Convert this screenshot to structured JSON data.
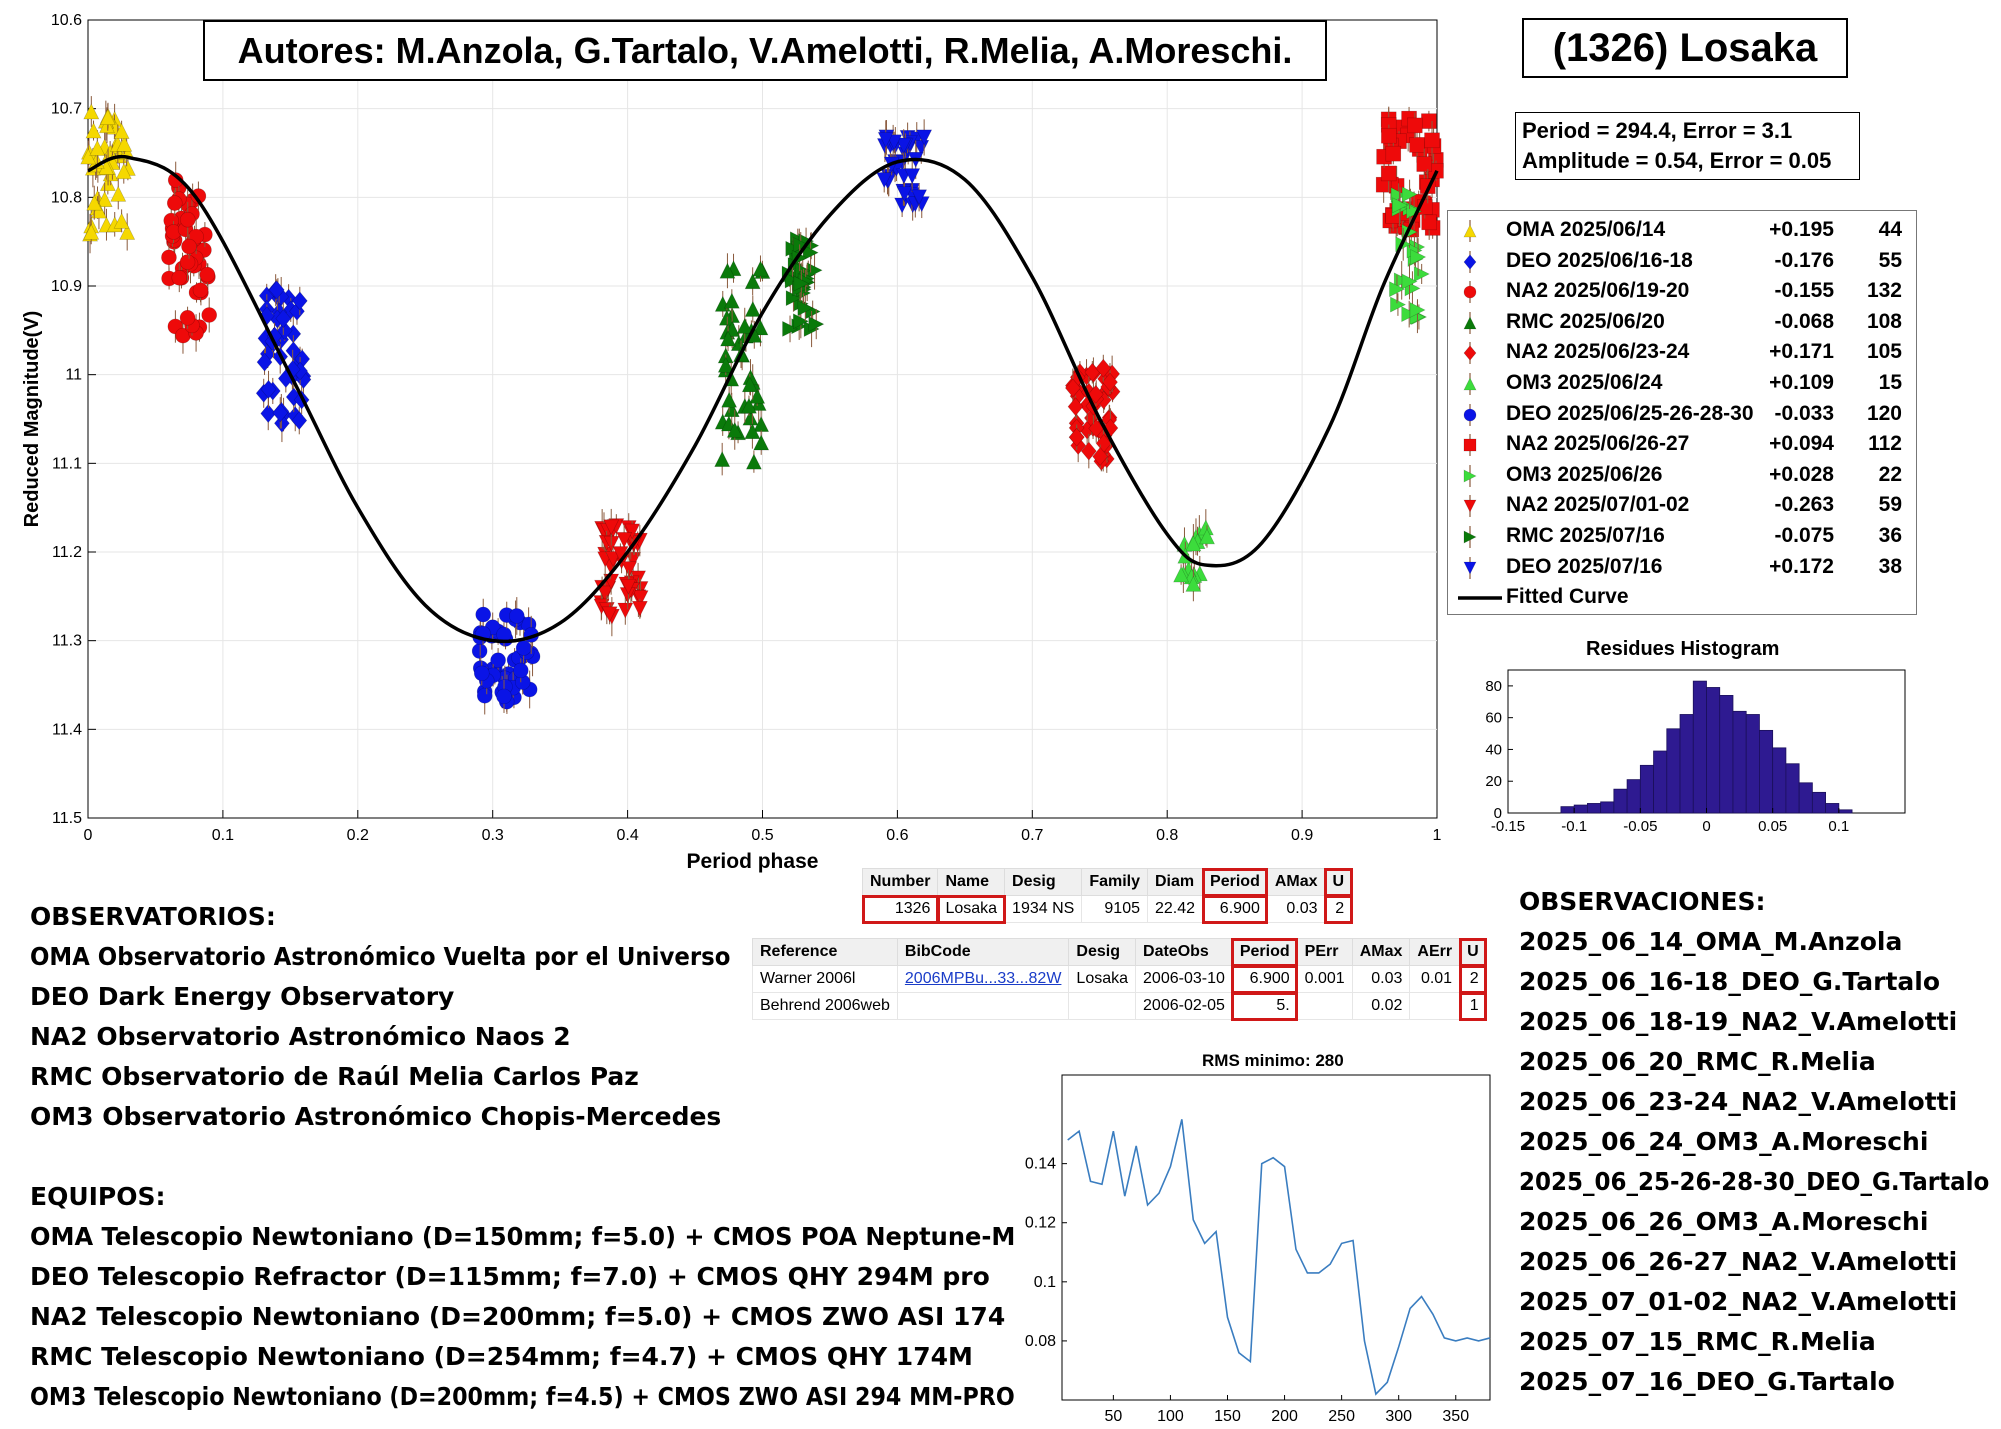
{
  "header": {
    "authors": "Autores: M.Anzola, G.Tartalo, V.Amelotti, R.Melia, A.Moreschi.",
    "asteroid": "(1326) Losaka"
  },
  "params": {
    "line1": "Period =  294.4, Error = 3.1",
    "line2": "Amplitude = 0.54, Error = 0.05"
  },
  "legend": [
    {
      "name": "OMA 2025/06/14",
      "offset": "+0.195",
      "n": "44",
      "color": "#f5d800",
      "marker": "triangle-up"
    },
    {
      "name": "DEO 2025/06/16-18",
      "offset": "-0.176",
      "n": "55",
      "color": "#0a14e6",
      "marker": "diamond"
    },
    {
      "name": "NA2 2025/06/19-20",
      "offset": "-0.155",
      "n": "132",
      "color": "#ee0a0a",
      "marker": "circle"
    },
    {
      "name": "RMC 2025/06/20",
      "offset": "-0.068",
      "n": "108",
      "color": "#0a7a0a",
      "marker": "triangle-up"
    },
    {
      "name": "NA2 2025/06/23-24",
      "offset": "+0.171",
      "n": "105",
      "color": "#ee0a0a",
      "marker": "diamond"
    },
    {
      "name": "OM3 2025/06/24",
      "offset": "+0.109",
      "n": "15",
      "color": "#3cdc3c",
      "marker": "triangle-up"
    },
    {
      "name": "DEO 2025/06/25-26-28-30",
      "offset": "-0.033",
      "n": "120",
      "color": "#0a14e6",
      "marker": "circle"
    },
    {
      "name": "NA2 2025/06/26-27",
      "offset": "+0.094",
      "n": "112",
      "color": "#ee0a0a",
      "marker": "square"
    },
    {
      "name": "OM3 2025/06/26",
      "offset": "+0.028",
      "n": "22",
      "color": "#3cdc3c",
      "marker": "triangle-right"
    },
    {
      "name": "NA2 2025/07/01-02",
      "offset": "-0.263",
      "n": "59",
      "color": "#ee0a0a",
      "marker": "triangle-down"
    },
    {
      "name": "RMC 2025/07/16",
      "offset": "-0.075",
      "n": "36",
      "color": "#0a7a0a",
      "marker": "triangle-right"
    },
    {
      "name": "DEO 2025/07/16",
      "offset": "+0.172",
      "n": "38",
      "color": "#0a14e6",
      "marker": "triangle-down"
    },
    {
      "name": "Fitted Curve",
      "offset": "",
      "n": "",
      "color": "#000000",
      "marker": "line"
    }
  ],
  "observatorios": {
    "title": "OBSERVATORIOS:",
    "items": [
      "OMA Observatorio Astronómico Vuelta por el Universo",
      "DEO Dark Energy Observatory",
      "NA2 Observatorio Astronómico Naos 2",
      "RMC Observatorio de Raúl Melia Carlos Paz",
      "OM3 Observatorio Astronómico Chopis-Mercedes"
    ]
  },
  "equipos": {
    "title": "EQUIPOS:",
    "items": [
      "OMA Telescopio Newtoniano (D=150mm; f=5.0) + CMOS POA Neptune-M",
      "DEO Telescopio Refractor (D=115mm; f=7.0) + CMOS QHY 294M pro",
      "NA2 Telescopio Newtoniano (D=200mm; f=5.0) + CMOS ZWO ASI 174",
      "RMC Telescopio Newtoniano (D=254mm; f=4.7) + CMOS QHY 174M",
      "OM3 Telescopio Newtoniano (D=200mm; f=4.5) + CMOS ZWO ASI 294 MM-PRO"
    ]
  },
  "observaciones": {
    "title": "OBSERVACIONES:",
    "items": [
      "2025_06_14_OMA_M.Anzola",
      "2025_06_16-18_DEO_G.Tartalo",
      "2025_06_18-19_NA2_V.Amelotti",
      "2025_06_20_RMC_R.Melia",
      "2025_06_23-24_NA2_V.Amelotti",
      "2025_06_24_OM3_A.Moreschi",
      "2025_06_25-26-28-30_DEO_G.Tartalo",
      "2025_06_26_OM3_A.Moreschi",
      "2025_06_26-27_NA2_V.Amelotti",
      "2025_07_01-02_NA2_V.Amelotti",
      "2025_07_15_RMC_R.Melia",
      "2025_07_16_DEO_G.Tartalo"
    ]
  },
  "lcdb_table1": {
    "headers": [
      "Number",
      "Name",
      "Desig",
      "Family",
      "Diam",
      "Period",
      "AMax",
      "U"
    ],
    "row": [
      "1326",
      "Losaka",
      "1934 NS",
      "9105",
      "22.42",
      "6.900",
      "0.03",
      "2"
    ]
  },
  "lcdb_table2": {
    "headers": [
      "Reference",
      "BibCode",
      "Desig",
      "DateObs",
      "Period",
      "PErr",
      "AMax",
      "AErr",
      "U"
    ],
    "rows": [
      [
        "Warner 2006l",
        "2006MPBu...33...82W",
        "Losaka",
        "2006-03-10",
        "6.900",
        "0.001",
        "0.03",
        "0.01",
        "2"
      ],
      [
        "Behrend 2006web",
        "",
        "",
        "2006-02-05",
        "5.",
        "",
        "0.02",
        "",
        "1"
      ]
    ]
  },
  "chart_data": [
    {
      "type": "scatter",
      "title": "",
      "xlabel": "Period phase",
      "ylabel": "Reduced Magnitude(V)",
      "xlim": [
        0,
        1
      ],
      "ylim": [
        10.6,
        11.5
      ],
      "y_reversed": true,
      "grid": true,
      "xticks": [
        "0",
        "0.1",
        "0.2",
        "0.3",
        "0.4",
        "0.5",
        "0.6",
        "0.7",
        "0.8",
        "0.9",
        "1"
      ],
      "yticks": [
        "10.6",
        "10.7",
        "10.8",
        "10.9",
        "11",
        "11.1",
        "11.2",
        "11.3",
        "11.4",
        "11.5"
      ],
      "fitted_curve": {
        "name": "Fitted Curve",
        "period": 294.4,
        "amplitude": 0.54,
        "points": [
          [
            0,
            10.77
          ],
          [
            0.03,
            10.755
          ],
          [
            0.08,
            10.8
          ],
          [
            0.15,
            11.0
          ],
          [
            0.2,
            11.15
          ],
          [
            0.25,
            11.26
          ],
          [
            0.3,
            11.3
          ],
          [
            0.35,
            11.28
          ],
          [
            0.4,
            11.2
          ],
          [
            0.45,
            11.08
          ],
          [
            0.5,
            10.93
          ],
          [
            0.55,
            10.82
          ],
          [
            0.6,
            10.76
          ],
          [
            0.65,
            10.78
          ],
          [
            0.7,
            10.89
          ],
          [
            0.75,
            11.05
          ],
          [
            0.8,
            11.18
          ],
          [
            0.83,
            11.215
          ],
          [
            0.87,
            11.19
          ],
          [
            0.92,
            11.06
          ],
          [
            0.96,
            10.9
          ],
          [
            1.0,
            10.77
          ]
        ]
      },
      "series": [
        {
          "name": "OMA 2025/06/14",
          "phase_range": [
            0.0,
            0.03
          ],
          "mag_range": [
            10.7,
            10.85
          ]
        },
        {
          "name": "DEO 2025/06/16-18",
          "phase_range": [
            0.13,
            0.16
          ],
          "mag_range": [
            10.9,
            11.06
          ]
        },
        {
          "name": "NA2 2025/06/19-20",
          "phase_range": [
            0.06,
            0.09
          ],
          "mag_range": [
            10.78,
            10.96
          ]
        },
        {
          "name": "RMC 2025/06/20",
          "phase_range": [
            0.47,
            0.5
          ],
          "mag_range": [
            10.88,
            11.1
          ]
        },
        {
          "name": "NA2 2025/06/23-24",
          "phase_range": [
            0.73,
            0.76
          ],
          "mag_range": [
            10.99,
            11.1
          ]
        },
        {
          "name": "OM3 2025/06/24",
          "phase_range": [
            0.81,
            0.83
          ],
          "mag_range": [
            11.17,
            11.24
          ]
        },
        {
          "name": "DEO 2025/06/25-26-28-30",
          "phase_range": [
            0.29,
            0.33
          ],
          "mag_range": [
            11.27,
            11.37
          ]
        },
        {
          "name": "NA2 2025/06/26-27",
          "phase_range": [
            0.96,
            1.0
          ],
          "mag_range": [
            10.71,
            10.84
          ]
        },
        {
          "name": "OM3 2025/06/26",
          "phase_range": [
            0.97,
            0.99
          ],
          "mag_range": [
            10.78,
            10.94
          ]
        },
        {
          "name": "NA2 2025/07/01-02",
          "phase_range": [
            0.38,
            0.41
          ],
          "mag_range": [
            11.17,
            11.28
          ]
        },
        {
          "name": "RMC 2025/07/16",
          "phase_range": [
            0.52,
            0.54
          ],
          "mag_range": [
            10.84,
            10.95
          ]
        },
        {
          "name": "DEO 2025/07/16",
          "phase_range": [
            0.59,
            0.62
          ],
          "mag_range": [
            10.73,
            10.81
          ]
        }
      ]
    },
    {
      "type": "bar",
      "title": "Residues Histogram",
      "xlabel": "",
      "ylabel": "",
      "xlim": [
        -0.15,
        0.15
      ],
      "ylim": [
        0,
        90
      ],
      "xticks": [
        "-0.15",
        "-0.1",
        "-0.05",
        "0",
        "0.05",
        "0.1"
      ],
      "yticks": [
        "0",
        "20",
        "40",
        "60",
        "80"
      ],
      "bin_width": 0.01,
      "bin_centers": [
        -0.105,
        -0.095,
        -0.085,
        -0.075,
        -0.065,
        -0.055,
        -0.045,
        -0.035,
        -0.025,
        -0.015,
        -0.005,
        0.005,
        0.015,
        0.025,
        0.035,
        0.045,
        0.055,
        0.065,
        0.075,
        0.085,
        0.095,
        0.105
      ],
      "values": [
        4,
        5,
        6,
        7,
        15,
        21,
        30,
        39,
        53,
        62,
        83,
        79,
        74,
        64,
        62,
        52,
        41,
        31,
        19,
        13,
        6,
        2
      ],
      "color": "#2e1a91"
    },
    {
      "type": "line",
      "title": "RMS minimo: 280",
      "xlabel": "",
      "ylabel": "",
      "xlim": [
        5,
        380
      ],
      "ylim": [
        0.06,
        0.17
      ],
      "xticks": [
        "50",
        "100",
        "150",
        "200",
        "250",
        "300",
        "350"
      ],
      "yticks": [
        "0.08",
        "0.1",
        "0.12",
        "0.14"
      ],
      "color": "#3a7dc0",
      "x": [
        10,
        20,
        30,
        40,
        50,
        60,
        70,
        80,
        90,
        100,
        110,
        120,
        130,
        140,
        150,
        160,
        170,
        180,
        190,
        200,
        210,
        220,
        230,
        240,
        250,
        260,
        270,
        280,
        290,
        300,
        310,
        320,
        330,
        340,
        350,
        360,
        370,
        380
      ],
      "values": [
        0.148,
        0.151,
        0.134,
        0.133,
        0.151,
        0.129,
        0.146,
        0.126,
        0.13,
        0.139,
        0.155,
        0.121,
        0.113,
        0.117,
        0.088,
        0.076,
        0.073,
        0.14,
        0.142,
        0.139,
        0.111,
        0.103,
        0.103,
        0.106,
        0.113,
        0.114,
        0.08,
        0.062,
        0.066,
        0.078,
        0.091,
        0.095,
        0.089,
        0.081,
        0.08,
        0.081,
        0.08,
        0.081
      ]
    }
  ]
}
